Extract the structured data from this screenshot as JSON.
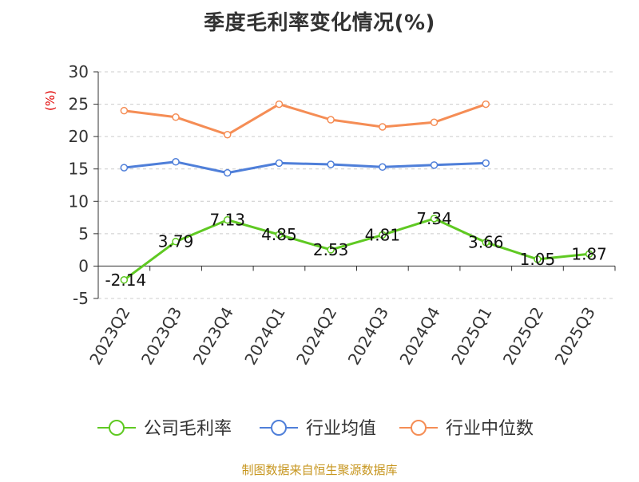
{
  "chart_data": {
    "type": "line",
    "title": "季度毛利率变化情况(%)",
    "ylabel": "(%)",
    "xlabel": "",
    "categories": [
      "2023Q2",
      "2023Q3",
      "2023Q4",
      "2024Q1",
      "2024Q2",
      "2024Q3",
      "2024Q4",
      "2025Q1",
      "2025Q2",
      "2025Q3"
    ],
    "ylim": [
      -5,
      30
    ],
    "yticks": [
      "30",
      "25",
      "20",
      "15",
      "10",
      "5",
      "0",
      "-5"
    ],
    "ytick_values": [
      30,
      25,
      20,
      15,
      10,
      5,
      0,
      -5
    ],
    "grid": true,
    "legend_position": "bottom",
    "series": [
      {
        "name": "公司毛利率",
        "color": "#5fc922",
        "values": [
          -2.14,
          3.79,
          7.13,
          4.85,
          2.53,
          4.81,
          7.34,
          3.66,
          1.05,
          1.87
        ],
        "labels": [
          "-2.14",
          "3.79",
          "7.13",
          "4.85",
          "2.53",
          "4.81",
          "7.34",
          "3.66",
          "1.05",
          "1.87"
        ]
      },
      {
        "name": "行业均值",
        "color": "#4f7fd9",
        "values": [
          15.2,
          16.1,
          14.4,
          15.9,
          15.7,
          15.3,
          15.6,
          15.9,
          null,
          null
        ]
      },
      {
        "name": "行业中位数",
        "color": "#f58d55",
        "values": [
          24.0,
          23.0,
          20.3,
          25.0,
          22.6,
          21.5,
          22.2,
          25.0,
          null,
          null
        ]
      }
    ]
  },
  "source": "制图数据来自恒生聚源数据库"
}
